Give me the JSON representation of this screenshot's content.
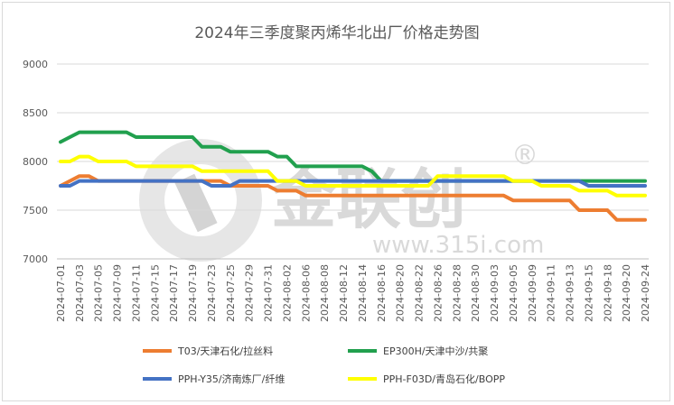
{
  "chart_data": {
    "type": "line",
    "title": "2024年三季度聚丙烯华北出厂价格走势图",
    "xlabel": "",
    "ylabel": "",
    "ylim": [
      7000,
      9000
    ],
    "yticks": [
      7000,
      7500,
      8000,
      8500,
      9000
    ],
    "grid": true,
    "legend_position": "bottom",
    "watermark": {
      "brand": "金联创",
      "url": "www.315i.com",
      "mark": "®"
    },
    "x": [
      "2024-07-01",
      "2024-07-02",
      "2024-07-03",
      "2024-07-04",
      "2024-07-05",
      "2024-07-08",
      "2024-07-09",
      "2024-07-10",
      "2024-07-11",
      "2024-07-12",
      "2024-07-15",
      "2024-07-16",
      "2024-07-17",
      "2024-07-18",
      "2024-07-19",
      "2024-07-22",
      "2024-07-23",
      "2024-07-24",
      "2024-07-25",
      "2024-07-26",
      "2024-07-29",
      "2024-07-30",
      "2024-07-31",
      "2024-08-01",
      "2024-08-02",
      "2024-08-05",
      "2024-08-06",
      "2024-08-07",
      "2024-08-08",
      "2024-08-09",
      "2024-08-12",
      "2024-08-13",
      "2024-08-14",
      "2024-08-15",
      "2024-08-16",
      "2024-08-19",
      "2024-08-20",
      "2024-08-21",
      "2024-08-22",
      "2024-08-23",
      "2024-08-26",
      "2024-08-27",
      "2024-08-28",
      "2024-08-29",
      "2024-08-30",
      "2024-09-02",
      "2024-09-03",
      "2024-09-04",
      "2024-09-05",
      "2024-09-06",
      "2024-09-09",
      "2024-09-10",
      "2024-09-11",
      "2024-09-12",
      "2024-09-13",
      "2024-09-14",
      "2024-09-15",
      "2024-09-16",
      "2024-09-18",
      "2024-09-19",
      "2024-09-20",
      "2024-09-23",
      "2024-09-24"
    ],
    "xtick_labels": [
      "2024-07-01",
      "2024-07-03",
      "2024-07-05",
      "2024-07-09",
      "2024-07-11",
      "2024-07-15",
      "2024-07-17",
      "2024-07-19",
      "2024-07-23",
      "2024-07-25",
      "2024-07-29",
      "2024-07-31",
      "2024-08-02",
      "2024-08-06",
      "2024-08-08",
      "2024-08-12",
      "2024-08-14",
      "2024-08-16",
      "2024-08-20",
      "2024-08-22",
      "2024-08-26",
      "2024-08-28",
      "2024-08-30",
      "2024-09-03",
      "2024-09-05",
      "2024-09-09",
      "2024-09-11",
      "2024-09-13",
      "2024-09-15",
      "2024-09-18",
      "2024-09-20",
      "2024-09-24"
    ],
    "series": [
      {
        "name": "T03/天津石化/拉丝料",
        "color": "#ED7D31",
        "values": [
          7750,
          7800,
          7850,
          7850,
          7800,
          7800,
          7800,
          7800,
          7800,
          7800,
          7800,
          7800,
          7800,
          7800,
          7800,
          7800,
          7800,
          7800,
          7750,
          7750,
          7750,
          7750,
          7750,
          7700,
          7700,
          7700,
          7650,
          7650,
          7650,
          7650,
          7650,
          7650,
          7650,
          7650,
          7650,
          7650,
          7650,
          7650,
          7650,
          7650,
          7650,
          7650,
          7650,
          7650,
          7650,
          7650,
          7650,
          7650,
          7600,
          7600,
          7600,
          7600,
          7600,
          7600,
          7600,
          7500,
          7500,
          7500,
          7500,
          7400,
          7400,
          7400,
          7400
        ]
      },
      {
        "name": "EP300H/天津中沙/共聚",
        "color": "#21A04E",
        "values": [
          8200,
          8250,
          8300,
          8300,
          8300,
          8300,
          8300,
          8300,
          8250,
          8250,
          8250,
          8250,
          8250,
          8250,
          8250,
          8150,
          8150,
          8150,
          8100,
          8100,
          8100,
          8100,
          8100,
          8050,
          8050,
          7950,
          7950,
          7950,
          7950,
          7950,
          7950,
          7950,
          7950,
          7900,
          7800,
          7800,
          7800,
          7800,
          7800,
          7800,
          7800,
          7800,
          7800,
          7800,
          7800,
          7800,
          7800,
          7800,
          7800,
          7800,
          7800,
          7800,
          7800,
          7800,
          7800,
          7800,
          7800,
          7800,
          7800,
          7800,
          7800,
          7800,
          7800
        ]
      },
      {
        "name": "PPH-Y35/济南炼厂/纤维",
        "color": "#4472C4",
        "values": [
          7750,
          7750,
          7800,
          7800,
          7800,
          7800,
          7800,
          7800,
          7800,
          7800,
          7800,
          7800,
          7800,
          7800,
          7800,
          7800,
          7750,
          7750,
          7750,
          7800,
          7800,
          7800,
          7800,
          7800,
          7800,
          7800,
          7800,
          7800,
          7800,
          7800,
          7800,
          7800,
          7800,
          7800,
          7800,
          7800,
          7800,
          7800,
          7800,
          7800,
          7800,
          7800,
          7800,
          7800,
          7800,
          7800,
          7800,
          7800,
          7800,
          7800,
          7800,
          7800,
          7800,
          7800,
          7800,
          7800,
          7750,
          7750,
          7750,
          7750,
          7750,
          7750,
          7750
        ]
      },
      {
        "name": "PPH-F03D/青岛石化/BOPP",
        "color": "#FFFF00",
        "values": [
          8000,
          8000,
          8050,
          8050,
          8000,
          8000,
          8000,
          8000,
          7950,
          7950,
          7950,
          7950,
          7950,
          7950,
          7950,
          7900,
          7900,
          7900,
          7900,
          7900,
          7900,
          7900,
          7900,
          7800,
          7800,
          7800,
          7750,
          7750,
          7750,
          7750,
          7750,
          7750,
          7750,
          7750,
          7750,
          7750,
          7750,
          7750,
          7750,
          7750,
          7850,
          7850,
          7850,
          7850,
          7850,
          7850,
          7850,
          7850,
          7800,
          7800,
          7800,
          7750,
          7750,
          7750,
          7750,
          7700,
          7700,
          7700,
          7700,
          7650,
          7650,
          7650,
          7650
        ]
      }
    ]
  }
}
